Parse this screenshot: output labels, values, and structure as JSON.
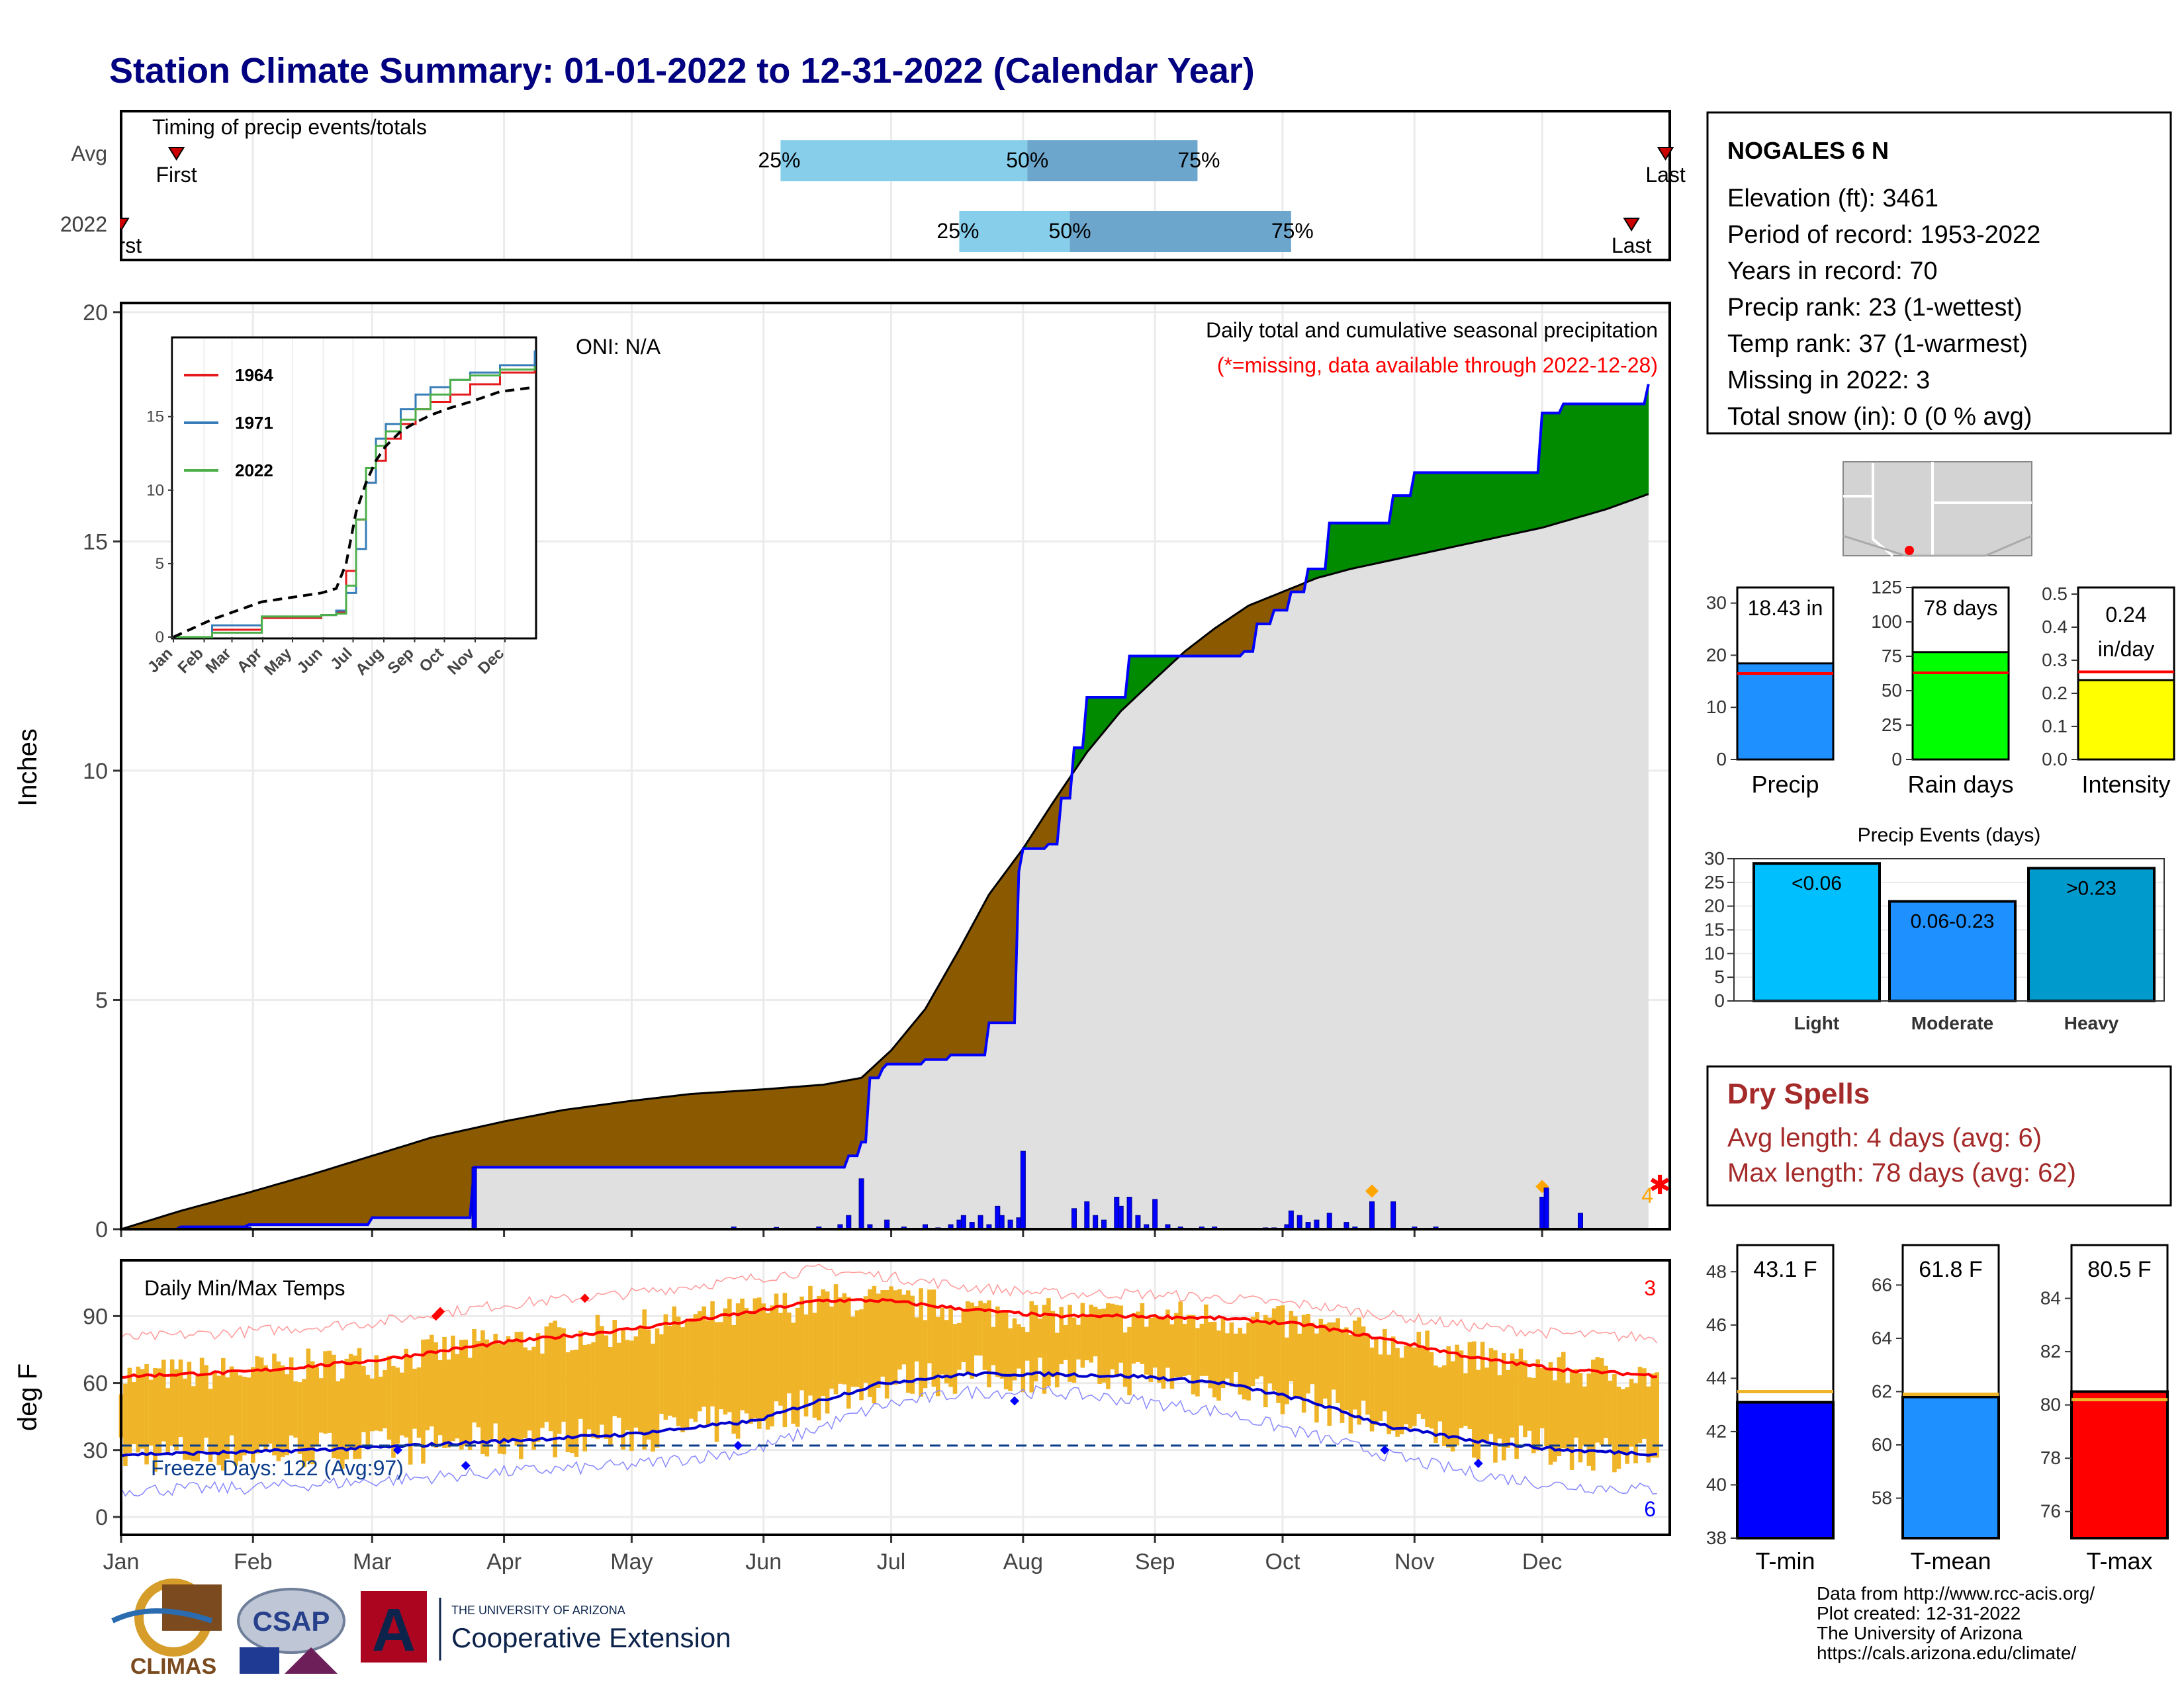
{
  "title": "Station Climate Summary: 01-01-2022 to 12-31-2022 (Calendar Year)",
  "timing": {
    "label": "Timing of precip events/totals",
    "rows": [
      {
        "name": "Avg",
        "first_label": "First",
        "last_label": "Last",
        "first_day": 14,
        "last_day": 364,
        "p25_day": 156,
        "p50_day": 214,
        "p75_day": 254
      },
      {
        "name": "2022",
        "first_label": "First",
        "last_label": "Last",
        "first_day": 1,
        "last_day": 356,
        "p25_day": 198,
        "p50_day": 224,
        "p75_day": 276
      }
    ],
    "p25_label": "25%",
    "p50_label": "50%",
    "p75_label": "75%",
    "colors": {
      "inner": "#87CEEB",
      "outer": "#6CA6CD",
      "marker": "#CC0000"
    }
  },
  "precip_chart": {
    "ylabel": "Inches",
    "yticks": [
      0,
      5,
      10,
      15,
      20
    ],
    "ylim": [
      0,
      20
    ],
    "oni_label": "ONI: N/A",
    "subtitle": "Daily total and cumulative seasonal precipitation",
    "missing_note": "(*=missing, data available through 2022-12-28)",
    "missing_count": "4",
    "months": [
      "Jan",
      "Feb",
      "Mar",
      "Apr",
      "May",
      "Jun",
      "Jul",
      "Aug",
      "Sep",
      "Oct",
      "Nov",
      "Dec"
    ],
    "colors": {
      "dry": "#8B5A00",
      "wet": "#008B00",
      "avg_fill": "#E0E0E0",
      "line": "#0000FF",
      "marker": "#FFA500"
    }
  },
  "inset": {
    "yticks": [
      0,
      5,
      10,
      15
    ],
    "months": [
      "Jan",
      "Feb",
      "Mar",
      "Apr",
      "May",
      "Jun",
      "Jul",
      "Aug",
      "Sep",
      "Oct",
      "Nov",
      "Dec"
    ],
    "legend": [
      {
        "name": "1964",
        "color": "#E41A1C"
      },
      {
        "name": "1971",
        "color": "#377EB8"
      },
      {
        "name": "2022",
        "color": "#4DAF4A"
      }
    ]
  },
  "temp_chart": {
    "ylabel": "deg F",
    "label": "Daily Min/Max Temps",
    "freeze_label": "Freeze Days: 122 (Avg:97)",
    "missing_hi": "3",
    "missing_lo": "6",
    "yticks": [
      0,
      30,
      60,
      90
    ],
    "ylim": [
      -8,
      115
    ],
    "months": [
      "Jan",
      "Feb",
      "Mar",
      "Apr",
      "May",
      "Jun",
      "Jul",
      "Aug",
      "Sep",
      "Oct",
      "Nov",
      "Dec"
    ],
    "colors": {
      "bars": "#F0B428",
      "avg_max": "#FF0000",
      "avg_min": "#0000CC"
    }
  },
  "station": {
    "name": "NOGALES 6 N",
    "lines": [
      "Elevation (ft): 3461",
      "Period of record: 1953-2022",
      "Years in record: 70",
      "Precip rank: 23 (1-wettest)",
      "Temp rank: 37 (1-warmest)",
      "Missing in 2022: 3",
      "Total snow (in): 0 (0 % avg)"
    ]
  },
  "mini_bars": [
    {
      "label": "Precip",
      "value_label": "18.43 in",
      "value": 18.43,
      "avg": 16.5,
      "ymax": 33,
      "yticks": [
        0,
        10,
        20,
        30
      ],
      "color": "#1E90FF"
    },
    {
      "label": "Rain days",
      "value_label": "78 days",
      "value": 78,
      "avg": 63,
      "ymax": 125,
      "yticks": [
        0,
        25,
        50,
        75,
        100,
        125
      ],
      "color": "#00FF00"
    },
    {
      "label": "Intensity",
      "value_label": "0.24 in/day",
      "value_l1": "0.24",
      "value_l2": "in/day",
      "value": 0.24,
      "avg": 0.265,
      "ymax": 0.52,
      "yticks": [
        0.0,
        0.1,
        0.2,
        0.3,
        0.4,
        0.5
      ],
      "color": "#FFFF00"
    }
  ],
  "events": {
    "title": "Precip Events (days)",
    "yticks": [
      0,
      5,
      10,
      15,
      20,
      25,
      30
    ],
    "ymax": 30,
    "bars": [
      {
        "label": "Light",
        "range": "<0.06",
        "value": 29,
        "color": "#00BFFF"
      },
      {
        "label": "Moderate",
        "range": "0.06-0.23",
        "value": 21,
        "color": "#1E90FF"
      },
      {
        "label": "Heavy",
        "range": ">0.23",
        "value": 28,
        "color": "#009ACD"
      }
    ]
  },
  "dry_spells": {
    "title": "Dry Spells",
    "avg": "Avg length: 4 days (avg: 6)",
    "max": "Max length: 78 days (avg: 62)"
  },
  "temp_bars": [
    {
      "label": "T-min",
      "value_label": "43.1 F",
      "value": 43.1,
      "avg": 43.5,
      "ymin": 38,
      "ymax": 49,
      "yticks": [
        38,
        40,
        42,
        44,
        46,
        48
      ],
      "color": "#0000FF"
    },
    {
      "label": "T-mean",
      "value_label": "61.8 F",
      "value": 61.8,
      "avg": 61.9,
      "ymin": 56.5,
      "ymax": 67.5,
      "yticks": [
        58,
        60,
        62,
        64,
        66
      ],
      "color": "#1E90FF"
    },
    {
      "label": "T-max",
      "value_label": "80.5 F",
      "value": 80.5,
      "avg": 80.2,
      "ymin": 75,
      "ymax": 86,
      "yticks": [
        76,
        78,
        80,
        82,
        84
      ],
      "color": "#FF0000"
    }
  ],
  "credits": [
    "Data from http://www.rcc-acis.org/",
    "Plot created: 12-31-2022",
    "The University of Arizona",
    "https://cals.arizona.edu/climate/"
  ],
  "logos": {
    "climas": "CLIMAS",
    "csap": "CSAP",
    "ua_top": "THE UNIVERSITY OF ARIZONA",
    "ua_bottom": "Cooperative Extension",
    "ua_mark": "A"
  },
  "chart_data": [
    {
      "type": "area",
      "title": "Daily total and cumulative seasonal precipitation",
      "ylabel": "Inches",
      "ylim": [
        0,
        20
      ],
      "x_unit": "day of year",
      "series": [
        {
          "name": "2022",
          "x": [
            1,
            15,
            31,
            60,
            83,
            84,
            170,
            172,
            175,
            177,
            180,
            181,
            190,
            196,
            205,
            212,
            213,
            219,
            222,
            225,
            228,
            232,
            238,
            244,
            255,
            265,
            268,
            272,
            276,
            280,
            285,
            300,
            305,
            330,
            335,
            340,
            352,
            360
          ],
          "y": [
            0,
            0.05,
            0.1,
            0.25,
            0.25,
            1.35,
            1.35,
            1.6,
            1.9,
            3.3,
            3.5,
            3.6,
            3.7,
            3.8,
            4.5,
            7.8,
            8.3,
            8.4,
            9.4,
            10.5,
            11.6,
            11.6,
            12.5,
            12.5,
            12.5,
            12.6,
            13.2,
            13.5,
            13.9,
            14.4,
            15.4,
            16.0,
            16.5,
            16.5,
            17.8,
            18.0,
            18.0,
            18.43
          ]
        }
      ],
      "average": {
        "x": [
          1,
          15,
          31,
          46,
          60,
          74,
          91,
          105,
          121,
          135,
          152,
          166,
          175,
          182,
          190,
          198,
          205,
          213,
          220,
          228,
          236,
          244,
          251,
          258,
          266,
          274,
          282,
          290,
          305,
          320,
          335,
          350,
          365
        ],
        "y": [
          0,
          0.4,
          0.8,
          1.2,
          1.6,
          2.0,
          2.35,
          2.6,
          2.8,
          2.95,
          3.05,
          3.15,
          3.3,
          3.9,
          4.8,
          6.1,
          7.3,
          8.3,
          9.3,
          10.4,
          11.3,
          12.0,
          12.6,
          13.1,
          13.6,
          13.9,
          14.2,
          14.4,
          14.7,
          15.0,
          15.3,
          15.7,
          16.2
        ]
      },
      "daily_bars": {
        "x": [
          15,
          31,
          84,
          145,
          155,
          165,
          170,
          172,
          175,
          177,
          181,
          185,
          190,
          193,
          196,
          198,
          199,
          201,
          203,
          205,
          207,
          208,
          210,
          212,
          213,
          225,
          228,
          230,
          232,
          235,
          236,
          238,
          240,
          242,
          244,
          247,
          250,
          255,
          258,
          270,
          272,
          275,
          276,
          278,
          280,
          282,
          285,
          289,
          291,
          295,
          300,
          305,
          310,
          335,
          336,
          344
        ],
        "y": [
          0.05,
          0.05,
          1.35,
          0.05,
          0.04,
          0.05,
          0.1,
          0.3,
          1.1,
          0.1,
          0.2,
          0.05,
          0.1,
          0.03,
          0.1,
          0.2,
          0.3,
          0.15,
          0.3,
          0.1,
          0.5,
          0.3,
          0.2,
          0.25,
          1.7,
          0.45,
          0.6,
          0.3,
          0.2,
          0.7,
          0.5,
          0.7,
          0.3,
          0.1,
          0.65,
          0.1,
          0.05,
          0.05,
          0.05,
          0.03,
          0.03,
          0.1,
          0.4,
          0.3,
          0.15,
          0.2,
          0.35,
          0.15,
          0.05,
          0.6,
          0.6,
          0.05,
          0.05,
          0.7,
          0.9,
          0.35
        ]
      },
      "inset_series": [
        {
          "name": "1964",
          "x": [
            1,
            40,
            90,
            150,
            165,
            175,
            185,
            195,
            205,
            215,
            230,
            245,
            260,
            280,
            300,
            330,
            365
          ],
          "y": [
            0,
            0.5,
            1.3,
            1.5,
            1.7,
            4.5,
            8.0,
            10.5,
            12.0,
            13.5,
            14.5,
            15.5,
            16.0,
            16.5,
            17.2,
            18.0,
            18.5
          ]
        },
        {
          "name": "1971",
          "x": [
            1,
            40,
            90,
            150,
            165,
            175,
            185,
            195,
            205,
            215,
            230,
            245,
            260,
            280,
            300,
            330,
            365
          ],
          "y": [
            0,
            0.8,
            1.4,
            1.5,
            1.8,
            3.0,
            6.0,
            10.5,
            13.5,
            14.5,
            15.5,
            16.5,
            17.0,
            17.5,
            18.0,
            18.5,
            19.5
          ]
        },
        {
          "name": "2022",
          "x": [
            1,
            40,
            90,
            150,
            165,
            175,
            185,
            195,
            205,
            215,
            230,
            245,
            260,
            280,
            300,
            330,
            365
          ],
          "y": [
            0,
            0.3,
            1.4,
            1.5,
            1.6,
            3.5,
            8.0,
            11.5,
            13.0,
            14.0,
            14.8,
            15.5,
            16.5,
            17.5,
            17.8,
            18.2,
            18.43
          ]
        },
        {
          "name": "Avg",
          "x": [
            1,
            40,
            90,
            150,
            165,
            175,
            185,
            195,
            205,
            215,
            230,
            245,
            260,
            280,
            300,
            330,
            365
          ],
          "y": [
            0,
            1.2,
            2.4,
            3.0,
            3.3,
            5.0,
            8.5,
            10.5,
            12.0,
            13.0,
            14.0,
            14.6,
            15.1,
            15.6,
            16.0,
            16.7,
            17.0
          ]
        }
      ]
    },
    {
      "type": "bar",
      "title": "Daily Min/Max Temps",
      "ylabel": "deg F",
      "ylim": [
        -8,
        115
      ],
      "x_unit": "day of year",
      "avg_max": {
        "x": [
          1,
          30,
          60,
          90,
          120,
          150,
          165,
          180,
          200,
          220,
          240,
          260,
          280,
          300,
          320,
          340,
          365
        ],
        "y": [
          63,
          65,
          70,
          78,
          84,
          92,
          97,
          97,
          93,
          90,
          90,
          89,
          86,
          79,
          71,
          66,
          63
        ]
      },
      "avg_min": {
        "x": [
          1,
          30,
          60,
          90,
          120,
          150,
          165,
          180,
          200,
          220,
          240,
          260,
          280,
          300,
          320,
          340,
          365
        ],
        "y": [
          28,
          29,
          31,
          34,
          37,
          43,
          52,
          60,
          64,
          64,
          63,
          60,
          52,
          40,
          34,
          30,
          28
        ]
      },
      "record_max": {
        "x": [
          1,
          30,
          60,
          90,
          120,
          150,
          165,
          180,
          200,
          220,
          240,
          260,
          280,
          300,
          320,
          340,
          365
        ],
        "y": [
          80,
          83,
          87,
          95,
          100,
          107,
          111,
          108,
          103,
          100,
          100,
          98,
          95,
          90,
          85,
          82,
          80
        ]
      },
      "record_min": {
        "x": [
          1,
          30,
          60,
          90,
          120,
          150,
          165,
          180,
          200,
          220,
          240,
          260,
          280,
          300,
          320,
          340,
          365
        ],
        "y": [
          12,
          13,
          16,
          20,
          23,
          30,
          40,
          50,
          56,
          56,
          52,
          47,
          37,
          27,
          19,
          14,
          12
        ]
      },
      "freeze_line": 32
    }
  ]
}
